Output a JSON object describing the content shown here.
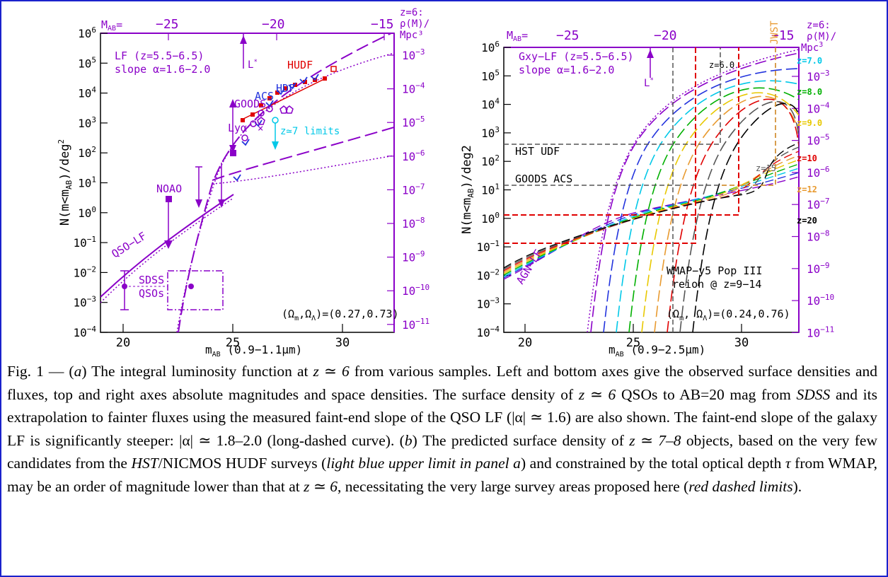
{
  "colors": {
    "border": "#1a22cc",
    "purple": "#8a00c8",
    "red": "#e00000",
    "blue": "#2233dd",
    "cyan": "#00c8e8",
    "gray": "#555555",
    "orange": "#e89a30"
  },
  "panel_a": {
    "top_axis_prefix": "M",
    "top_axis_prefix_sub": "AB",
    "top_axis_prefix_suffix": "=",
    "top_ticks": [
      "−25",
      "−20",
      "−15"
    ],
    "right_title_l1": "z=6:",
    "right_title_l2": "ρ(M)/",
    "right_title_l3": "Mpc³",
    "y_ticks_base": [
      "10",
      "10",
      "10",
      "10",
      "10",
      "10",
      "10",
      "10",
      "10",
      "10",
      "10"
    ],
    "y_ticks_exp": [
      "6",
      "5",
      "4",
      "3",
      "2",
      "1",
      "0",
      "−1",
      "−2",
      "−3",
      "−4"
    ],
    "right_ticks_exp": [
      "−3",
      "−4",
      "−5",
      "−6",
      "−7",
      "−8",
      "−9",
      "−10",
      "−11"
    ],
    "x_ticks": [
      "20",
      "25",
      "30"
    ],
    "ylabel": "N(m<m_AB)/deg²",
    "ylabel_main": "N(m<m",
    "ylabel_sub": "AB",
    "ylabel_tail": ")/deg",
    "ylabel_sup": "2",
    "xlabel_main": "m",
    "xlabel_sub": "AB",
    "xlabel_tail": " (0.9−1.1μm)",
    "lf_label_l1": "LF (z=5.5−6.5)",
    "lf_label_l2": "slope α=1.6−2.0",
    "lstar": "L",
    "lstar_sup": "*",
    "hudf": "HUDF",
    "hdf": "HDF",
    "acs": "ACS",
    "goods": "GOODS",
    "lya": "Lyα",
    "z7_limits": "z≃7 limits",
    "noao": "NOAO",
    "qso_lf": "QSO−LF",
    "sdss": "SDSS",
    "qsos": "QSOs",
    "cosmology": "(Ω",
    "cosmology_m": "m",
    "cosmology_mid": ",Ω",
    "cosmology_l": "Λ",
    "cosmology_vals": ")=(0.27,0.73)"
  },
  "panel_b": {
    "top_axis_prefix": "M",
    "top_axis_prefix_sub": "AB",
    "top_axis_prefix_suffix": "=",
    "top_ticks": [
      "−25",
      "−20",
      "−15"
    ],
    "right_title_l1": "z=6:",
    "right_title_l2": "ρ(M)/",
    "right_title_l3": "Mpc",
    "right_title_l3_sup": "3",
    "y_ticks_exp": [
      "6",
      "5",
      "4",
      "3",
      "2",
      "1",
      "0",
      "−1",
      "−2",
      "−3",
      "−4"
    ],
    "right_ticks_exp": [
      "−3",
      "−4",
      "−5",
      "−6",
      "−7",
      "−8",
      "−9",
      "−10",
      "−11"
    ],
    "x_ticks": [
      "20",
      "25",
      "30"
    ],
    "ylabel_main": "N(m<m",
    "ylabel_sub": "AB",
    "ylabel_tail": ")/deg2",
    "xlabel_main": "m",
    "xlabel_sub": "AB",
    "xlabel_tail": " (0.9−2.5μm)",
    "lf_label_l1": "Gxy−LF (z=5.5−6.5)",
    "lf_label_l2": "slope α=1.6−2.0",
    "lstar": "L",
    "lstar_sup": "*",
    "jwst": "JWST",
    "z60": "z=6.0",
    "z15": "z=15",
    "hst_udf": "HST UDF",
    "goods_acs": "GOODS ACS",
    "agn_lf": "AGN−LF",
    "wmap_l1": "WMAP−y5 Pop III",
    "wmap_l2": "reion @ z=9−14",
    "cosmology": "(Ω",
    "cosmology_m": "m",
    "cosmology_mid": ", Ω",
    "cosmology_l": "Λ",
    "cosmology_vals": ")=(0.24,0.76)",
    "z_legend": [
      "z=7.0",
      "z=8.0",
      "z=9.0",
      "z=10",
      "z=12",
      "z=20"
    ],
    "z_legend_colors": [
      "#00c8e8",
      "#00b000",
      "#e8c800",
      "#e00000",
      "#e89a30",
      "#000000"
    ]
  },
  "caption": {
    "p1": "Fig. 1 — (",
    "a": "a",
    "p2": ") The integral luminosity function at ",
    "z6a": "z ≃ 6",
    "p3": " from various samples. Left and bottom axes give the observed surface densities and fluxes, top and right axes absolute magnitudes and space densities. The surface density of ",
    "z6b": "z ≃ 6",
    "p4": " QSOs to AB=20 mag from ",
    "sdss": "SDSS",
    "p5": " and its extrapolation to fainter fluxes using the measured faint-end slope of the QSO LF (|α| ≃ 1.6) are also shown. The faint-end slope of the galaxy LF is significantly steeper: |α| ≃ 1.8–2.0 (long-dashed curve). (",
    "b": "b",
    "p6": ") The predicted surface density of ",
    "z78": "z ≃ 7–8",
    "p7": " objects, based on the very few candidates from the ",
    "hst": "HST",
    "p8": "/NICMOS HUDF surveys (",
    "lb1": "light blue upper limit in panel",
    "lb2": " a",
    "p9": ") and constrained by the total optical depth ",
    "tau": "τ",
    "p10": " from WMAP, may be an order of magnitude lower than that at ",
    "z6c": "z ≃ 6",
    "p11": ", necessitating the very large survey areas proposed here (",
    "red": "red dashed limits",
    "p12": ")."
  }
}
